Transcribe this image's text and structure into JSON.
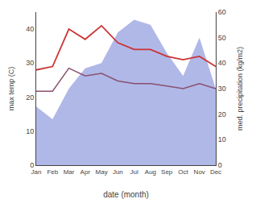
{
  "chart_data": {
    "type": "line",
    "categories": [
      "Jan",
      "Feb",
      "Mar",
      "Apr",
      "May",
      "Jun",
      "Jul",
      "Aug",
      "Sep",
      "Oct",
      "Nov",
      "Dec"
    ],
    "series": [
      {
        "type": "area",
        "axis": "y2",
        "color": "#b0b8e8",
        "values": [
          23,
          18,
          30,
          38,
          40,
          52,
          57,
          55,
          44,
          35,
          50,
          30
        ]
      },
      {
        "type": "line",
        "axis": "y2",
        "color": "#8a5070",
        "values": [
          29,
          29,
          38,
          35,
          36,
          33,
          32,
          32,
          31,
          30,
          32,
          30
        ]
      },
      {
        "type": "line",
        "color": "#cc3333",
        "values": [
          28,
          29,
          40,
          37,
          41,
          36,
          34,
          34,
          32,
          31,
          32,
          29
        ]
      }
    ],
    "xlabel": "date (month)",
    "ylabel": "max temp (C)",
    "y2label": "med. precipitation (kg/m2)",
    "ylim": [
      0,
      45
    ],
    "yticks": [
      0,
      10,
      20,
      30,
      40
    ],
    "y2lim": [
      0,
      60
    ],
    "y2ticks": [
      0,
      10,
      20,
      30,
      40,
      50,
      60
    ],
    "grid": false
  }
}
